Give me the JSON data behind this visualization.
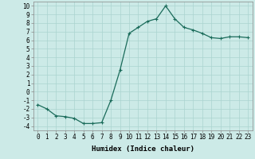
{
  "x": [
    0,
    1,
    2,
    3,
    4,
    5,
    6,
    7,
    8,
    9,
    10,
    11,
    12,
    13,
    14,
    15,
    16,
    17,
    18,
    19,
    20,
    21,
    22,
    23
  ],
  "y": [
    -1.5,
    -2.0,
    -2.8,
    -2.9,
    -3.1,
    -3.7,
    -3.7,
    -3.6,
    -1.0,
    2.5,
    6.8,
    7.5,
    8.2,
    8.5,
    10.0,
    8.5,
    7.5,
    7.2,
    6.8,
    6.3,
    6.2,
    6.4,
    6.4,
    6.3
  ],
  "xlabel": "Humidex (Indice chaleur)",
  "xlim": [
    -0.5,
    23.5
  ],
  "ylim": [
    -4.5,
    10.5
  ],
  "yticks": [
    -4,
    -3,
    -2,
    -1,
    0,
    1,
    2,
    3,
    4,
    5,
    6,
    7,
    8,
    9,
    10
  ],
  "xticks": [
    0,
    1,
    2,
    3,
    4,
    5,
    6,
    7,
    8,
    9,
    10,
    11,
    12,
    13,
    14,
    15,
    16,
    17,
    18,
    19,
    20,
    21,
    22,
    23
  ],
  "line_color": "#1a6b5a",
  "marker": "+",
  "bg_color": "#cceae7",
  "grid_color": "#aad4d0",
  "label_fontsize": 6.5,
  "tick_fontsize": 5.5
}
